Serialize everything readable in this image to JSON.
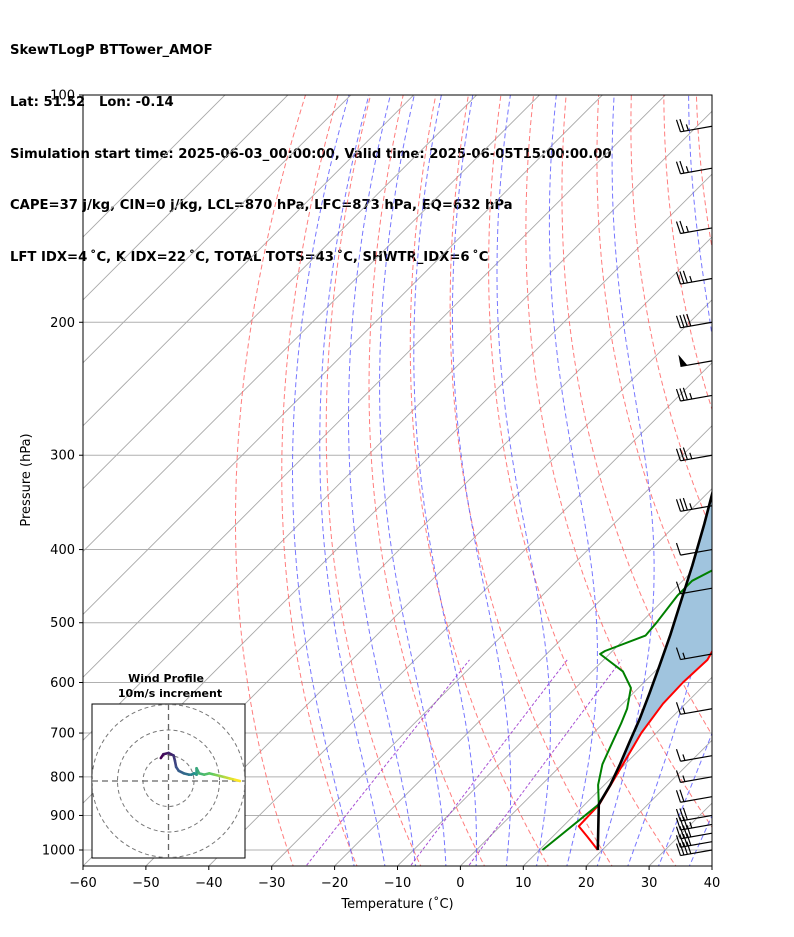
{
  "header": {
    "line1": "SkewTLogP BTTower_AMOF",
    "line2": "Lat: 51.52   Lon: -0.14",
    "line3": "Simulation start time: 2025-06-03_00:00:00, Valid time: 2025-06-05T15:00:00.00",
    "line4": "CAPE=37 j/kg, CIN=0 j/kg, LCL=870 hPa, LFC=873 hPa, EQ=632 hPa",
    "line5": "LFT IDX=4$^\\circ$C, K IDX=22$^\\circ$C, TOTAL TOTS=43$^\\circ$C, SHWTR_IDX=6$^\\circ$C"
  },
  "header_display": {
    "line5": "LFT IDX=4 ˚C, K IDX=22 ˚C, TOTAL TOTS=43 ˚C, SHWTR_IDX=6 ˚C"
  },
  "chart_data": {
    "type": "line",
    "subtype": "skew-t log-p",
    "xlabel": "Temperature ($^\\circ$C)",
    "xlabel_display": "Temperature (˚C)",
    "ylabel": "Pressure (hPa)",
    "xlim": [
      -60,
      40
    ],
    "ylim": [
      1050,
      100
    ],
    "yscale": "log",
    "x_ticks": [
      -60,
      -50,
      -40,
      -30,
      -20,
      -10,
      0,
      10,
      20,
      30,
      40
    ],
    "x_tick_labels": [
      "−60",
      "−50",
      "−40",
      "−30",
      "−20",
      "−10",
      "0",
      "10",
      "20",
      "30",
      "40"
    ],
    "y_ticks": [
      1000,
      900,
      800,
      700,
      600,
      500,
      400,
      300,
      200,
      100
    ],
    "y_tick_labels": [
      "1000",
      "900",
      "800",
      "700",
      "600",
      "500",
      "400",
      "300",
      "200",
      "100"
    ],
    "grid": true,
    "colors": {
      "temperature": "#ff0000",
      "dewpoint": "#008000",
      "parcel": "#000000",
      "cape": "#a0c4de",
      "dry_adiabat": "#ff6666",
      "moist_adiabat": "#5555ff",
      "mixing_ratio": "#9933cc",
      "isotherm": "#b0b0b0"
    },
    "series": [
      {
        "key": "temperature",
        "points": [
          [
            19.3,
            1000
          ],
          [
            15.5,
            960
          ],
          [
            12.5,
            930
          ],
          [
            12.3,
            870
          ],
          [
            10.5,
            800
          ],
          [
            7.6,
            700
          ],
          [
            6.4,
            640
          ],
          [
            6.2,
            600
          ],
          [
            6.5,
            560
          ],
          [
            4.8,
            520
          ],
          [
            1.5,
            480
          ],
          [
            -0.6,
            440
          ],
          [
            -1.6,
            410
          ],
          [
            -1.2,
            390
          ],
          [
            -0.5,
            370
          ],
          [
            -2.8,
            350
          ],
          [
            -6.5,
            330
          ],
          [
            -9,
            310
          ],
          [
            -10.5,
            290
          ],
          [
            -11,
            270
          ],
          [
            -9.8,
            255
          ],
          [
            -9.2,
            240
          ],
          [
            -9.5,
            220
          ],
          [
            -10.5,
            200
          ],
          [
            -11.5,
            180
          ],
          [
            -10.5,
            160
          ],
          [
            -11.3,
            140
          ],
          [
            -11.8,
            125
          ],
          [
            -12.3,
            110
          ],
          [
            -12.7,
            100
          ]
        ]
      },
      {
        "key": "dewpoint",
        "points": [
          [
            10.5,
            1000
          ],
          [
            11,
            960
          ],
          [
            12.2,
            870
          ],
          [
            9,
            820
          ],
          [
            6.4,
            770
          ],
          [
            4.5,
            720
          ],
          [
            2.9,
            680
          ],
          [
            1.5,
            650
          ],
          [
            -1.2,
            610
          ],
          [
            -5.1,
            580
          ],
          [
            -11.5,
            550
          ],
          [
            -11.2,
            545
          ],
          [
            -7.2,
            520
          ],
          [
            -7.5,
            500
          ],
          [
            -8.5,
            460
          ],
          [
            -8.5,
            440
          ],
          [
            -5.1,
            410
          ],
          [
            -6.5,
            380
          ],
          [
            -10,
            340
          ],
          [
            -12.5,
            300
          ],
          [
            -14,
            275
          ],
          [
            -16,
            255
          ],
          [
            -22,
            230
          ],
          [
            -26,
            210
          ],
          [
            -27.5,
            195
          ],
          [
            -27.5,
            185
          ],
          [
            -28,
            175
          ],
          [
            -29,
            165
          ],
          [
            -30,
            155
          ],
          [
            -32,
            140
          ],
          [
            -33.5,
            125
          ],
          [
            -34.5,
            110
          ],
          [
            -35,
            100
          ]
        ]
      },
      {
        "key": "parcel",
        "points": [
          [
            19.3,
            1000
          ],
          [
            12.2,
            870
          ],
          [
            10.95,
            820
          ],
          [
            9.2,
            770
          ],
          [
            7.2,
            720
          ],
          [
            5.1,
            670
          ],
          [
            2.6,
            620
          ],
          [
            -0.2,
            570
          ],
          [
            -3.3,
            520
          ],
          [
            -6.9,
            470
          ],
          [
            -10.9,
            420
          ],
          [
            -15.6,
            370
          ],
          [
            -21.2,
            320
          ],
          [
            -27.9,
            270
          ],
          [
            -36,
            220
          ],
          [
            -46.1,
            170
          ],
          [
            -55,
            140
          ],
          [
            -63,
            120
          ],
          [
            -72,
            100
          ]
        ]
      }
    ],
    "wind_barbs": [
      {
        "pressure": 1000,
        "speed_kt": 40
      },
      {
        "pressure": 975,
        "speed_kt": 40
      },
      {
        "pressure": 950,
        "speed_kt": 40
      },
      {
        "pressure": 925,
        "speed_kt": 35
      },
      {
        "pressure": 900,
        "speed_kt": 30
      },
      {
        "pressure": 850,
        "speed_kt": 20
      },
      {
        "pressure": 800,
        "speed_kt": 15
      },
      {
        "pressure": 750,
        "speed_kt": 15
      },
      {
        "pressure": 650,
        "speed_kt": 15
      },
      {
        "pressure": 550,
        "speed_kt": 15
      },
      {
        "pressure": 450,
        "speed_kt": 10
      },
      {
        "pressure": 400,
        "speed_kt": 10
      },
      {
        "pressure": 350,
        "speed_kt": 35
      },
      {
        "pressure": 300,
        "speed_kt": 35
      },
      {
        "pressure": 250,
        "speed_kt": 35
      },
      {
        "pressure": 225,
        "speed_kt": 50
      },
      {
        "pressure": 200,
        "speed_kt": 40
      },
      {
        "pressure": 175,
        "speed_kt": 35
      },
      {
        "pressure": 150,
        "speed_kt": 25
      },
      {
        "pressure": 125,
        "speed_kt": 25
      },
      {
        "pressure": 110,
        "speed_kt": 25
      }
    ],
    "hodograph": {
      "title": "Wind Profile",
      "subtitle": "10m/s increment",
      "rings_ms": [
        10,
        20,
        30
      ],
      "range_ms": 30,
      "points_ms": [
        [
          -3,
          9
        ],
        [
          -2,
          10.5
        ],
        [
          0,
          11
        ],
        [
          2,
          10
        ],
        [
          2.5,
          8
        ],
        [
          3,
          5.5
        ],
        [
          4,
          4
        ],
        [
          6,
          3
        ],
        [
          8,
          2.5
        ],
        [
          9,
          2.5
        ],
        [
          10,
          3
        ],
        [
          11,
          2.5
        ],
        [
          11,
          5
        ],
        [
          12,
          3
        ],
        [
          14,
          2.5
        ],
        [
          16,
          3
        ],
        [
          18,
          2.5
        ],
        [
          20,
          2
        ],
        [
          22,
          1.5
        ],
        [
          24,
          1
        ],
        [
          26,
          0.5
        ],
        [
          28,
          0
        ]
      ]
    }
  }
}
